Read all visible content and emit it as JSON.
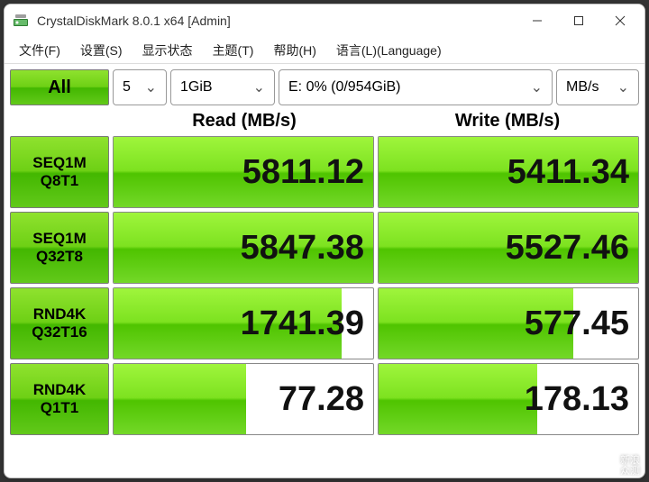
{
  "window": {
    "title": "CrystalDiskMark 8.0.1 x64 [Admin]"
  },
  "menu": {
    "file": "文件(F)",
    "settings": "设置(S)",
    "profile": "显示状态",
    "theme": "主题(T)",
    "help": "帮助(H)",
    "language": "语言(L)(Language)"
  },
  "controls": {
    "all_label": "All",
    "runs": "5",
    "size": "1GiB",
    "drive": "E: 0% (0/954GiB)",
    "unit": "MB/s"
  },
  "headers": {
    "read": "Read (MB/s)",
    "write": "Write (MB/s)"
  },
  "tests": [
    {
      "line1": "SEQ1M",
      "line2": "Q8T1",
      "read": "5811.12",
      "read_bar_pct": 100,
      "write": "5411.34",
      "write_bar_pct": 100
    },
    {
      "line1": "SEQ1M",
      "line2": "Q32T8",
      "read": "5847.38",
      "read_bar_pct": 100,
      "write": "5527.46",
      "write_bar_pct": 100
    },
    {
      "line1": "RND4K",
      "line2": "Q32T16",
      "read": "1741.39",
      "read_bar_pct": 88,
      "write": "577.45",
      "write_bar_pct": 75
    },
    {
      "line1": "RND4K",
      "line2": "Q1T1",
      "read": "77.28",
      "read_bar_pct": 51,
      "write": "178.13",
      "write_bar_pct": 61
    }
  ],
  "colors": {
    "green_grad_top": "#8fe22e",
    "green_grad_mid1": "#6ed015",
    "green_grad_mid2": "#43b700",
    "green_grad_bot": "#62c91a",
    "border": "#888888",
    "window_bg": "#ffffff"
  },
  "watermark": {
    "l1": "新浪",
    "l2": "众测"
  }
}
